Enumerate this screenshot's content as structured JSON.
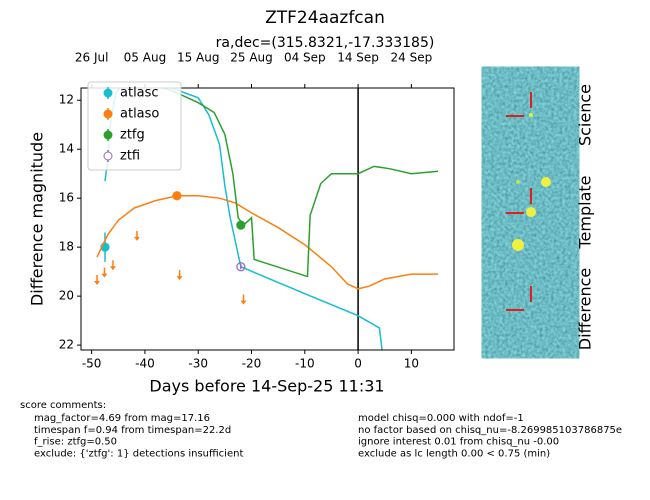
{
  "chart_data": {
    "type": "line",
    "title": "ZTF24aazfcan",
    "subtitle": "ra,dec=(315.8321,-17.333185)",
    "xlabel": "Days before 14-Sep-25 11:31",
    "ylabel": "Difference magnitude",
    "xlim": [
      -52,
      18
    ],
    "ylim": [
      22.2,
      11.5
    ],
    "xticks": [
      -50,
      -40,
      -30,
      -20,
      -10,
      0,
      10
    ],
    "yticks": [
      12,
      14,
      16,
      18,
      20,
      22
    ],
    "x2ticks": [
      {
        "value": -50,
        "label": "26 Jul"
      },
      {
        "value": -40,
        "label": "05 Aug"
      },
      {
        "value": -30,
        "label": "15 Aug"
      },
      {
        "value": -20,
        "label": "25 Aug"
      },
      {
        "value": -10,
        "label": "04 Sep"
      },
      {
        "value": 0,
        "label": "14 Sep"
      },
      {
        "value": 10,
        "label": "24 Sep"
      }
    ],
    "vline": 0,
    "series": [
      {
        "name": "atlasc",
        "color": "#17becf",
        "x": [
          -47.5,
          -47,
          -46.5,
          -45.5,
          -44,
          -40,
          -35,
          -30,
          -28,
          -26,
          -25,
          -24,
          -22.5,
          -22,
          -10,
          0,
          4,
          4.5
        ],
        "values": [
          15.3,
          14.5,
          13,
          11.7,
          11.3,
          11.3,
          11.5,
          11.9,
          12.6,
          13.8,
          15.5,
          16.8,
          18.3,
          18.8,
          19.9,
          20.8,
          21.3,
          22.2
        ],
        "points": {
          "x": [
            -47.5
          ],
          "values": [
            18.0
          ],
          "errors": [
            0.6
          ]
        },
        "limits": {
          "x": [],
          "values": []
        }
      },
      {
        "name": "atlaso",
        "color": "#ff7f0e",
        "x": [
          -49,
          -47,
          -45,
          -42,
          -38,
          -34,
          -30,
          -26,
          -23,
          -20,
          -15,
          -10,
          -5,
          -2,
          0,
          2,
          5,
          10,
          15
        ],
        "values": [
          18.4,
          17.5,
          16.9,
          16.4,
          16.1,
          15.9,
          15.9,
          16.0,
          16.2,
          16.6,
          17.2,
          17.9,
          18.8,
          19.5,
          19.7,
          19.6,
          19.3,
          19.1,
          19.1
        ],
        "points": {
          "x": [
            -34
          ],
          "values": [
            15.9
          ],
          "errors": [
            0.1
          ]
        },
        "limits": {
          "x": [
            -49,
            -47.6,
            -46,
            -41.5,
            -33.5,
            -21.5
          ],
          "values": [
            19.3,
            19.0,
            18.7,
            17.5,
            19.1,
            20.1
          ]
        }
      },
      {
        "name": "ztfg",
        "color": "#2ca02c",
        "x": [
          -45,
          -40,
          -35,
          -30,
          -27,
          -25,
          -23.5,
          -22.5,
          -21.5,
          -20,
          -19.5,
          -9.5,
          -9,
          -7,
          -5,
          0,
          3,
          6,
          10,
          15
        ],
        "values": [
          11.3,
          11.3,
          11.6,
          12.1,
          12.5,
          13.4,
          15,
          16.8,
          17.1,
          16.8,
          18.5,
          19.2,
          16.7,
          15.4,
          15.0,
          15.0,
          14.7,
          14.8,
          15.0,
          14.9
        ],
        "points": {
          "x": [
            -22
          ],
          "values": [
            17.1
          ],
          "errors": [
            0.1
          ]
        },
        "limits": {
          "x": [],
          "values": []
        }
      },
      {
        "name": "ztfi",
        "color": "#9467bd",
        "marker": "open",
        "x": [],
        "values": [],
        "points": {
          "x": [
            -22
          ],
          "values": [
            18.8
          ],
          "errors": [
            0.1
          ]
        },
        "limits": {
          "x": [],
          "values": []
        }
      }
    ]
  },
  "panels": [
    "Science",
    "Template",
    "Difference"
  ],
  "comments": {
    "heading": "score comments:",
    "left": [
      "mag_factor=4.69 from mag=17.16",
      "timespan f=0.94 from timespan=22.2d",
      "f_rise: ztfg=0.50",
      "exclude: {'ztfg': 1} detections insufficient"
    ],
    "right": [
      "model chisq=0.000 with ndof=-1",
      "no factor based on chisq_nu=-8.269985103786875e",
      "ignore interest 0.01 from chisq_nu -0.00",
      "exclude as lc length 0.00 < 0.75 (min)"
    ]
  }
}
